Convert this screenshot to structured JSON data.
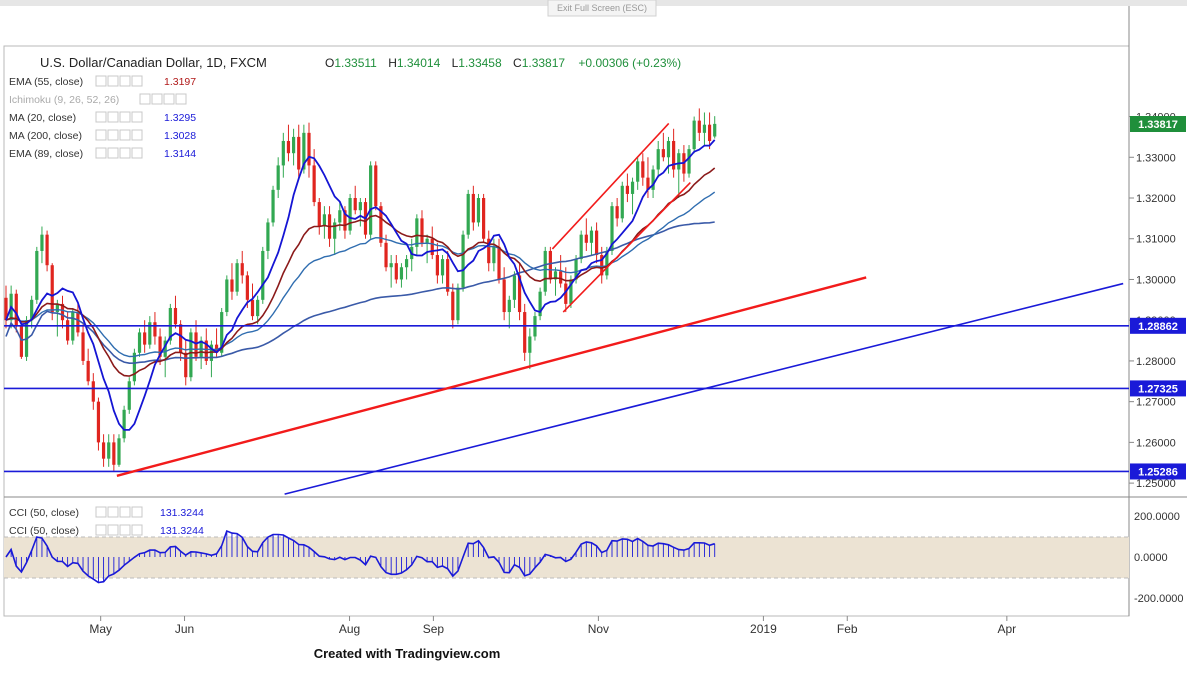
{
  "toolbar": {
    "exit_fullscreen": "Exit Full Screen (ESC)"
  },
  "watermark": "Created with Tradingview.com",
  "colors": {
    "up": "#32a852",
    "down": "#e0251f",
    "ema55": "#8b1a1a",
    "ma20": "#1515d4",
    "ma200": "#3a5aa8",
    "ema89": "#2f6db0",
    "hline": "#1a1ad8",
    "trend_red": "#f21b1b",
    "trend_blue": "#1a1ad8",
    "cci": "#1a1ad8",
    "cci_band": "#ece3d3"
  },
  "chart_data": {
    "type": "candlestick",
    "symbol": "U.S. Dollar/Canadian Dollar, 1D, FXCM",
    "ohlc_header": {
      "open_label": "O",
      "open": "1.33511",
      "high_label": "H",
      "high": "1.34014",
      "low_label": "L",
      "low": "1.33458",
      "close_label": "C",
      "close": "1.33817",
      "change": "+0.00306 (+0.23%)"
    },
    "indicators": [
      {
        "label": "EMA (55, close)",
        "value": "1.3197",
        "color": "ema55"
      },
      {
        "label": "Ichimoku (9, 26, 52, 26)",
        "value": "",
        "color": "muted"
      },
      {
        "label": "MA (20, close)",
        "value": "1.3295",
        "color": "ma20"
      },
      {
        "label": "MA (200, close)",
        "value": "1.3028",
        "color": "ma200"
      },
      {
        "label": "EMA (89, close)",
        "value": "1.3144",
        "color": "ema89"
      }
    ],
    "x_labels": [
      {
        "text": "May",
        "day": 35
      },
      {
        "text": "Jun",
        "day": 66
      },
      {
        "text": "Aug",
        "day": 127
      },
      {
        "text": "Sep",
        "day": 158
      },
      {
        "text": "Nov",
        "day": 219
      },
      {
        "text": "2019",
        "day": 280
      },
      {
        "text": "Feb",
        "day": 311
      },
      {
        "text": "Apr",
        "day": 370
      }
    ],
    "y_ticks": [
      "1.25000",
      "1.26000",
      "1.27000",
      "1.28000",
      "1.29000",
      "1.30000",
      "1.31000",
      "1.32000",
      "1.33000",
      "1.34000"
    ],
    "ylim": [
      1.2488,
      1.3475
    ],
    "price_tags": [
      {
        "value": "1.33817",
        "style": "green"
      },
      {
        "value": "1.28862",
        "style": "blue"
      },
      {
        "value": "1.27325",
        "style": "blue"
      },
      {
        "value": "1.25286",
        "style": "blue"
      }
    ],
    "horizontal_levels": [
      1.28862,
      1.27325,
      1.25286
    ],
    "candles_days_range": [
      0,
      262
    ],
    "ohlc": [
      [
        1.2955,
        1.2985,
        1.288,
        1.29
      ],
      [
        1.29,
        1.2985,
        1.288,
        1.2965
      ],
      [
        1.2965,
        1.2975,
        1.287,
        1.2885
      ],
      [
        1.2885,
        1.289,
        1.2805,
        1.281
      ],
      [
        1.281,
        1.291,
        1.28,
        1.29
      ],
      [
        1.29,
        1.296,
        1.288,
        1.295
      ],
      [
        1.295,
        1.308,
        1.294,
        1.307
      ],
      [
        1.307,
        1.313,
        1.304,
        1.311
      ],
      [
        1.311,
        1.312,
        1.302,
        1.3035
      ],
      [
        1.3035,
        1.304,
        1.29,
        1.292
      ],
      [
        1.292,
        1.295,
        1.286,
        1.294
      ],
      [
        1.294,
        1.296,
        1.288,
        1.29
      ],
      [
        1.29,
        1.292,
        1.284,
        1.285
      ],
      [
        1.285,
        1.293,
        1.284,
        1.292
      ],
      [
        1.292,
        1.294,
        1.286,
        1.287
      ],
      [
        1.287,
        1.289,
        1.279,
        1.28
      ],
      [
        1.28,
        1.283,
        1.274,
        1.275
      ],
      [
        1.275,
        1.277,
        1.268,
        1.27
      ],
      [
        1.27,
        1.271,
        1.258,
        1.26
      ],
      [
        1.26,
        1.262,
        1.254,
        1.256
      ],
      [
        1.256,
        1.262,
        1.254,
        1.26
      ],
      [
        1.26,
        1.262,
        1.253,
        1.2545
      ],
      [
        1.2545,
        1.262,
        1.254,
        1.261
      ],
      [
        1.261,
        1.269,
        1.26,
        1.268
      ],
      [
        1.268,
        1.276,
        1.267,
        1.275
      ],
      [
        1.275,
        1.283,
        1.274,
        1.282
      ],
      [
        1.282,
        1.288,
        1.281,
        1.287
      ],
      [
        1.287,
        1.29,
        1.282,
        1.284
      ],
      [
        1.284,
        1.291,
        1.283,
        1.2895
      ],
      [
        1.2895,
        1.292,
        1.284,
        1.286
      ],
      [
        1.286,
        1.288,
        1.279,
        1.281
      ],
      [
        1.281,
        1.286,
        1.276,
        1.285
      ],
      [
        1.285,
        1.294,
        1.284,
        1.293
      ],
      [
        1.293,
        1.296,
        1.288,
        1.289
      ],
      [
        1.289,
        1.29,
        1.28,
        1.282
      ],
      [
        1.282,
        1.285,
        1.274,
        1.276
      ],
      [
        1.276,
        1.288,
        1.275,
        1.287
      ],
      [
        1.287,
        1.29,
        1.28,
        1.281
      ],
      [
        1.281,
        1.286,
        1.278,
        1.285
      ],
      [
        1.285,
        1.288,
        1.279,
        1.28
      ],
      [
        1.28,
        1.285,
        1.276,
        1.284
      ],
      [
        1.284,
        1.288,
        1.281,
        1.282
      ],
      [
        1.282,
        1.293,
        1.281,
        1.292
      ],
      [
        1.292,
        1.301,
        1.291,
        1.3
      ],
      [
        1.3,
        1.304,
        1.295,
        1.297
      ],
      [
        1.297,
        1.305,
        1.296,
        1.304
      ],
      [
        1.304,
        1.307,
        1.299,
        1.301
      ],
      [
        1.301,
        1.302,
        1.293,
        1.295
      ],
      [
        1.295,
        1.299,
        1.29,
        1.291
      ],
      [
        1.291,
        1.296,
        1.289,
        1.295
      ],
      [
        1.295,
        1.308,
        1.294,
        1.307
      ],
      [
        1.307,
        1.315,
        1.305,
        1.314
      ],
      [
        1.314,
        1.323,
        1.313,
        1.322
      ],
      [
        1.322,
        1.33,
        1.32,
        1.328
      ],
      [
        1.328,
        1.336,
        1.325,
        1.334
      ],
      [
        1.334,
        1.338,
        1.329,
        1.331
      ],
      [
        1.331,
        1.337,
        1.328,
        1.335
      ],
      [
        1.335,
        1.338,
        1.325,
        1.327
      ],
      [
        1.327,
        1.338,
        1.326,
        1.336
      ],
      [
        1.336,
        1.3385,
        1.325,
        1.328
      ],
      [
        1.328,
        1.332,
        1.318,
        1.319
      ],
      [
        1.319,
        1.32,
        1.311,
        1.313
      ],
      [
        1.313,
        1.318,
        1.31,
        1.316
      ],
      [
        1.316,
        1.318,
        1.308,
        1.31
      ],
      [
        1.31,
        1.315,
        1.306,
        1.314
      ],
      [
        1.314,
        1.319,
        1.312,
        1.317
      ],
      [
        1.317,
        1.318,
        1.31,
        1.312
      ],
      [
        1.312,
        1.321,
        1.311,
        1.32
      ],
      [
        1.32,
        1.323,
        1.316,
        1.317
      ],
      [
        1.317,
        1.32,
        1.313,
        1.319
      ],
      [
        1.319,
        1.32,
        1.31,
        1.311
      ],
      [
        1.311,
        1.329,
        1.31,
        1.328
      ],
      [
        1.328,
        1.329,
        1.317,
        1.318
      ],
      [
        1.318,
        1.319,
        1.308,
        1.309
      ],
      [
        1.309,
        1.311,
        1.302,
        1.303
      ],
      [
        1.303,
        1.306,
        1.298,
        1.304
      ],
      [
        1.304,
        1.306,
        1.299,
        1.3
      ],
      [
        1.3,
        1.304,
        1.298,
        1.303
      ],
      [
        1.303,
        1.306,
        1.3,
        1.305
      ],
      [
        1.305,
        1.31,
        1.302,
        1.308
      ],
      [
        1.308,
        1.316,
        1.306,
        1.315
      ],
      [
        1.315,
        1.317,
        1.308,
        1.309
      ],
      [
        1.309,
        1.311,
        1.304,
        1.31
      ],
      [
        1.31,
        1.313,
        1.305,
        1.306
      ],
      [
        1.306,
        1.309,
        1.299,
        1.301
      ],
      [
        1.301,
        1.306,
        1.299,
        1.305
      ],
      [
        1.305,
        1.307,
        1.296,
        1.297
      ],
      [
        1.297,
        1.299,
        1.288,
        1.29
      ],
      [
        1.29,
        1.299,
        1.289,
        1.298
      ],
      [
        1.298,
        1.312,
        1.297,
        1.311
      ],
      [
        1.311,
        1.322,
        1.31,
        1.321
      ],
      [
        1.321,
        1.323,
        1.312,
        1.314
      ],
      [
        1.314,
        1.321,
        1.313,
        1.32
      ],
      [
        1.32,
        1.321,
        1.309,
        1.31
      ],
      [
        1.31,
        1.312,
        1.302,
        1.304
      ],
      [
        1.304,
        1.31,
        1.302,
        1.308
      ],
      [
        1.308,
        1.31,
        1.299,
        1.3
      ],
      [
        1.3,
        1.303,
        1.29,
        1.292
      ],
      [
        1.292,
        1.296,
        1.288,
        1.295
      ],
      [
        1.295,
        1.302,
        1.293,
        1.301
      ],
      [
        1.301,
        1.304,
        1.29,
        1.292
      ],
      [
        1.292,
        1.294,
        1.28,
        1.282
      ],
      [
        1.282,
        1.288,
        1.278,
        1.286
      ],
      [
        1.286,
        1.292,
        1.285,
        1.291
      ],
      [
        1.291,
        1.298,
        1.29,
        1.297
      ],
      [
        1.297,
        1.308,
        1.296,
        1.307
      ],
      [
        1.307,
        1.308,
        1.299,
        1.3
      ],
      [
        1.3,
        1.303,
        1.296,
        1.302
      ],
      [
        1.302,
        1.306,
        1.298,
        1.299
      ],
      [
        1.299,
        1.303,
        1.292,
        1.294
      ],
      [
        1.294,
        1.301,
        1.293,
        1.3
      ],
      [
        1.3,
        1.306,
        1.299,
        1.305
      ],
      [
        1.305,
        1.312,
        1.304,
        1.311
      ],
      [
        1.311,
        1.315,
        1.307,
        1.309
      ],
      [
        1.309,
        1.313,
        1.306,
        1.312
      ],
      [
        1.312,
        1.314,
        1.304,
        1.306
      ],
      [
        1.306,
        1.308,
        1.299,
        1.301
      ],
      [
        1.301,
        1.308,
        1.3,
        1.307
      ],
      [
        1.307,
        1.319,
        1.306,
        1.318
      ],
      [
        1.318,
        1.32,
        1.313,
        1.315
      ],
      [
        1.315,
        1.324,
        1.314,
        1.323
      ],
      [
        1.323,
        1.326,
        1.319,
        1.321
      ],
      [
        1.321,
        1.325,
        1.316,
        1.324
      ],
      [
        1.324,
        1.33,
        1.322,
        1.329
      ],
      [
        1.329,
        1.331,
        1.323,
        1.325
      ],
      [
        1.325,
        1.33,
        1.32,
        1.322
      ],
      [
        1.322,
        1.328,
        1.32,
        1.327
      ],
      [
        1.327,
        1.334,
        1.325,
        1.332
      ],
      [
        1.332,
        1.336,
        1.329,
        1.33
      ],
      [
        1.33,
        1.335,
        1.326,
        1.334
      ],
      [
        1.334,
        1.337,
        1.325,
        1.327
      ],
      [
        1.327,
        1.332,
        1.32,
        1.331
      ],
      [
        1.331,
        1.333,
        1.324,
        1.326
      ],
      [
        1.326,
        1.333,
        1.325,
        1.332
      ],
      [
        1.332,
        1.34,
        1.331,
        1.339
      ],
      [
        1.339,
        1.342,
        1.334,
        1.336
      ],
      [
        1.336,
        1.341,
        1.333,
        1.338
      ],
      [
        1.338,
        1.341,
        1.332,
        1.334
      ],
      [
        1.3351,
        1.3401,
        1.3346,
        1.3382
      ]
    ]
  }
}
